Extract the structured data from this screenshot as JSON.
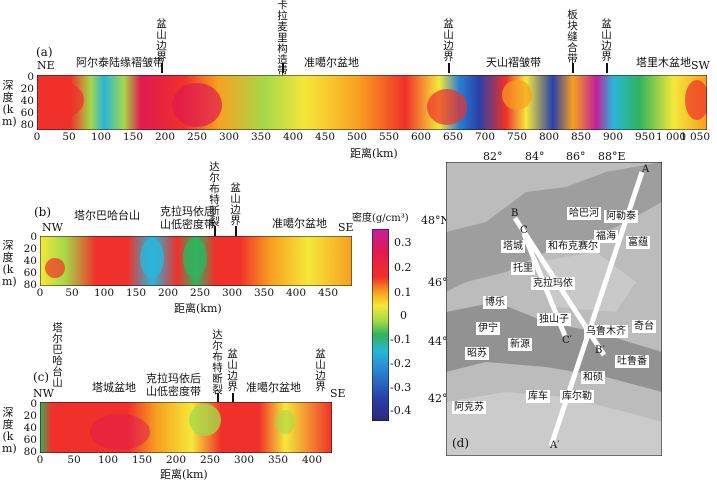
{
  "panel_a": {
    "letter": "(a)",
    "end_left": "NE",
    "end_right": "SW",
    "y_label": "深度(km)",
    "x_label": "距离(km)",
    "y_ticks": [
      "0",
      "20",
      "40",
      "60",
      "80"
    ],
    "x_ticks": [
      "0",
      "50",
      "100",
      "150",
      "200",
      "250",
      "300",
      "350",
      "400",
      "450",
      "500",
      "550",
      "600",
      "650",
      "700",
      "750",
      "800",
      "850",
      "900",
      "950",
      "1 000",
      "1 050"
    ],
    "zone_labels": [
      "阿尔泰陆缘褶皱带",
      "准噶尔盆地",
      "天山褶皱带",
      "塔里木盆地"
    ],
    "boundary_labels": [
      "盆山边界",
      "卡拉麦里构造带",
      "盆山边界",
      "板块缝合带",
      "盆山边界"
    ]
  },
  "panel_b": {
    "letter": "(b)",
    "end_left": "NW",
    "end_right": "SE",
    "y_label": "深度(km)",
    "x_label": "距离(km)",
    "y_ticks": [
      "0",
      "20",
      "40",
      "60",
      "80"
    ],
    "x_ticks": [
      "0",
      "50",
      "100",
      "150",
      "200",
      "250",
      "300",
      "350",
      "400",
      "450"
    ],
    "zone_labels": [
      "塔尔巴哈台山",
      "克拉玛依后",
      "山低密度带",
      "准噶尔盆地"
    ],
    "boundary_labels": [
      "达尔布特断裂",
      "盆山边界"
    ]
  },
  "panel_c": {
    "letter": "(c)",
    "end_left": "NW",
    "end_right": "SE",
    "y_label": "深度(km)",
    "x_label": "距离(km)",
    "y_ticks": [
      "0",
      "20",
      "40",
      "60",
      "80"
    ],
    "x_ticks": [
      "0",
      "50",
      "100",
      "150",
      "200",
      "250",
      "300",
      "350",
      "400"
    ],
    "zone_labels": [
      "塔城盆地",
      "克拉玛依后",
      "山低密度带",
      "准噶尔盆地"
    ],
    "boundary_labels": [
      "塔尔巴哈台山",
      "达尔布特断裂",
      "盆山边界",
      "盆山边界"
    ]
  },
  "colorbar": {
    "title": "密度(g/cm³)",
    "ticks": [
      "0.3",
      "0.2",
      "0.1",
      "0",
      "-0.1",
      "-0.2",
      "-0.3",
      "-0.4"
    ],
    "colors": [
      "#c0209c",
      "#e01a50",
      "#f0302a",
      "#f7a020",
      "#f5e83a",
      "#a6d848",
      "#30b45c",
      "#2ab5d9",
      "#2a7fd0",
      "#2a3fa8",
      "#2b2a78"
    ]
  },
  "map": {
    "letter": "(d)",
    "lon_ticks": [
      "82°",
      "84°",
      "86°",
      "88°E"
    ],
    "lat_ticks": [
      "48°N",
      "46°",
      "44°",
      "42°"
    ],
    "profile_labels": [
      "A",
      "A′",
      "B",
      "B′",
      "C",
      "C′"
    ],
    "places": [
      "哈巴河",
      "阿勒泰",
      "福海",
      "富蕴",
      "塔城",
      "和布克赛尔",
      "托里",
      "克拉玛依",
      "博乐",
      "独山子",
      "乌鲁木齐",
      "奇台",
      "伊宁",
      "新源",
      "昭苏",
      "吐鲁番",
      "和硕",
      "库车",
      "库尔勒",
      "阿克苏"
    ]
  }
}
